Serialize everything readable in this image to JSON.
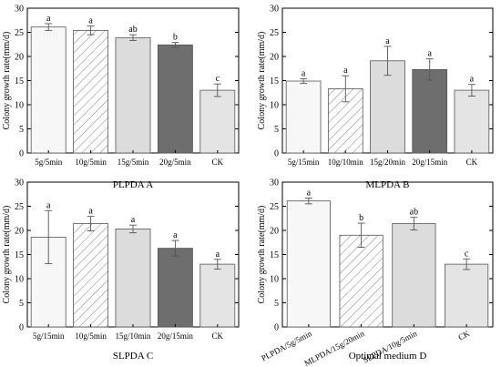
{
  "colors": {
    "axis": "#000000",
    "bar_stroke": "#555555",
    "error_bar": "#555555",
    "fills": [
      "#f7f7f7",
      "#ffffff",
      "#dcdcdc",
      "#6e6e6e",
      "#e4e4e4"
    ],
    "hatch": "#8a8a8a"
  },
  "chart_data": [
    {
      "type": "bar",
      "title": "PLPDA A",
      "ylabel": "Colony growth rate(mm/d)",
      "xlabel": "",
      "ylim": [
        0,
        30
      ],
      "yticks": [
        0,
        5,
        10,
        15,
        20,
        25,
        30
      ],
      "grid": false,
      "categories": [
        "5g/5min",
        "10g/5min",
        "15g/5min",
        "20g/5min",
        "CK"
      ],
      "values": [
        26.1,
        25.4,
        23.9,
        22.4,
        13.0
      ],
      "errors": [
        0.7,
        0.9,
        0.6,
        0.5,
        1.3
      ],
      "letters": [
        "a",
        "a",
        "ab",
        "b",
        "c"
      ],
      "patterns": [
        "plain",
        "hatch",
        "plain",
        "plain",
        "plain"
      ],
      "rotate_labels": false
    },
    {
      "type": "bar",
      "title": "MLPDA B",
      "ylabel": "Colony growth rate(mm/d)",
      "xlabel": "",
      "ylim": [
        0,
        30
      ],
      "yticks": [
        0,
        5,
        10,
        15,
        20,
        25,
        30
      ],
      "grid": false,
      "categories": [
        "5g/15min",
        "10g/10min",
        "15g/20min",
        "20g/15min",
        "CK"
      ],
      "values": [
        14.9,
        13.3,
        19.1,
        17.3,
        13.0
      ],
      "errors": [
        0.5,
        2.7,
        3.0,
        2.2,
        1.2
      ],
      "letters": [
        "a",
        "a",
        "a",
        "a",
        "a"
      ],
      "patterns": [
        "plain",
        "hatch",
        "plain",
        "plain",
        "plain"
      ],
      "rotate_labels": false
    },
    {
      "type": "bar",
      "title": "SLPDA C",
      "ylabel": "Colony growth rate(mm/d)",
      "xlabel": "",
      "ylim": [
        0,
        30
      ],
      "yticks": [
        0,
        5,
        10,
        15,
        20,
        25,
        30
      ],
      "grid": false,
      "categories": [
        "5g/15min",
        "10g/5min",
        "15g/10min",
        "20g/15min",
        "CK"
      ],
      "values": [
        18.6,
        21.4,
        20.3,
        16.3,
        13.0
      ],
      "errors": [
        5.5,
        1.5,
        0.8,
        1.6,
        1.0
      ],
      "letters": [
        "a",
        "a",
        "a",
        "a",
        "a"
      ],
      "patterns": [
        "plain",
        "hatch",
        "plain",
        "plain",
        "plain"
      ],
      "rotate_labels": false
    },
    {
      "type": "bar",
      "title": "Optimal medium D",
      "ylabel": "Colony growth rate(mm/d)",
      "xlabel": "",
      "ylim": [
        0,
        30
      ],
      "yticks": [
        0,
        5,
        10,
        15,
        20,
        25,
        30
      ],
      "grid": false,
      "categories": [
        "PLPDA/5g/5min",
        "MLPDA/15g/20min",
        "SLPDA/10g/5min",
        "CK"
      ],
      "values": [
        26.1,
        19.0,
        21.4,
        13.0
      ],
      "errors": [
        0.6,
        2.5,
        1.3,
        1.1
      ],
      "letters": [
        "a",
        "b",
        "ab",
        "c"
      ],
      "patterns": [
        "plain",
        "hatch",
        "plain",
        "plain"
      ],
      "rotate_labels": true
    }
  ]
}
